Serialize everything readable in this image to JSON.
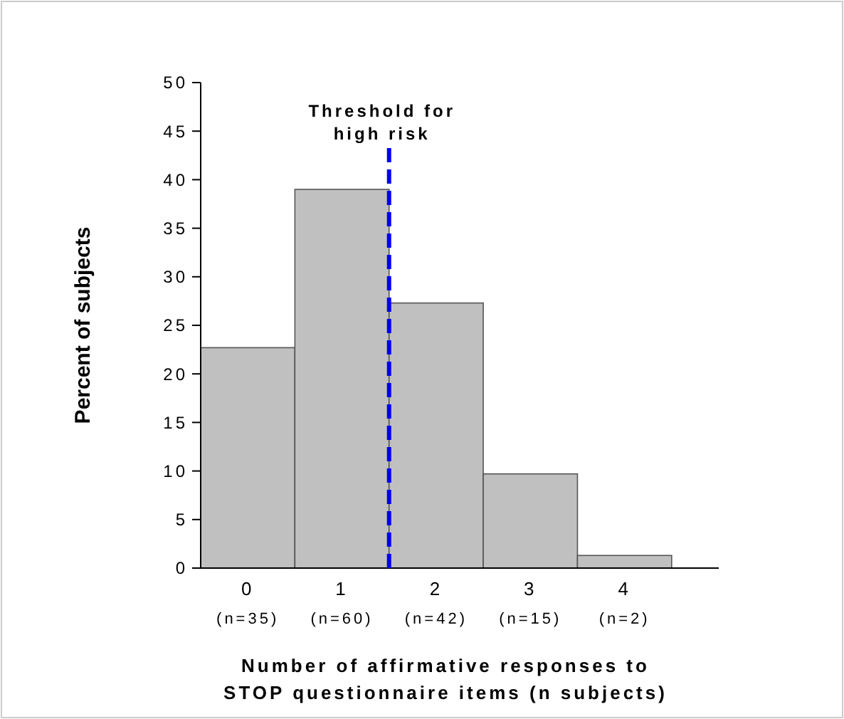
{
  "chart_data": {
    "type": "bar",
    "xlabel": "Number of affirmative responses to\nSTOP questionnaire items (n subjects)",
    "ylabel": "Percent of subjects",
    "x": [
      0,
      1,
      2,
      3,
      4
    ],
    "values": [
      22.7,
      39.0,
      27.3,
      9.7,
      1.3
    ],
    "color": "#c0c0c0",
    "xlim": [
      -0.5,
      5.0
    ],
    "xticks": [
      0,
      1,
      2,
      3,
      4
    ],
    "ylim": [
      0,
      50
    ],
    "yticks": [
      0,
      5,
      10,
      15,
      20,
      25,
      30,
      35,
      40,
      45,
      50
    ],
    "annotations": [
      "(n=35)",
      "(n=60)",
      "(n=42)",
      "(n=15)",
      "(n=2)"
    ],
    "ref_lines": [
      {
        "axis": "x",
        "value": 1.5,
        "label": "Threshold for\nhigh risk",
        "color": "#0000ee",
        "line_style": "dashed"
      }
    ]
  }
}
